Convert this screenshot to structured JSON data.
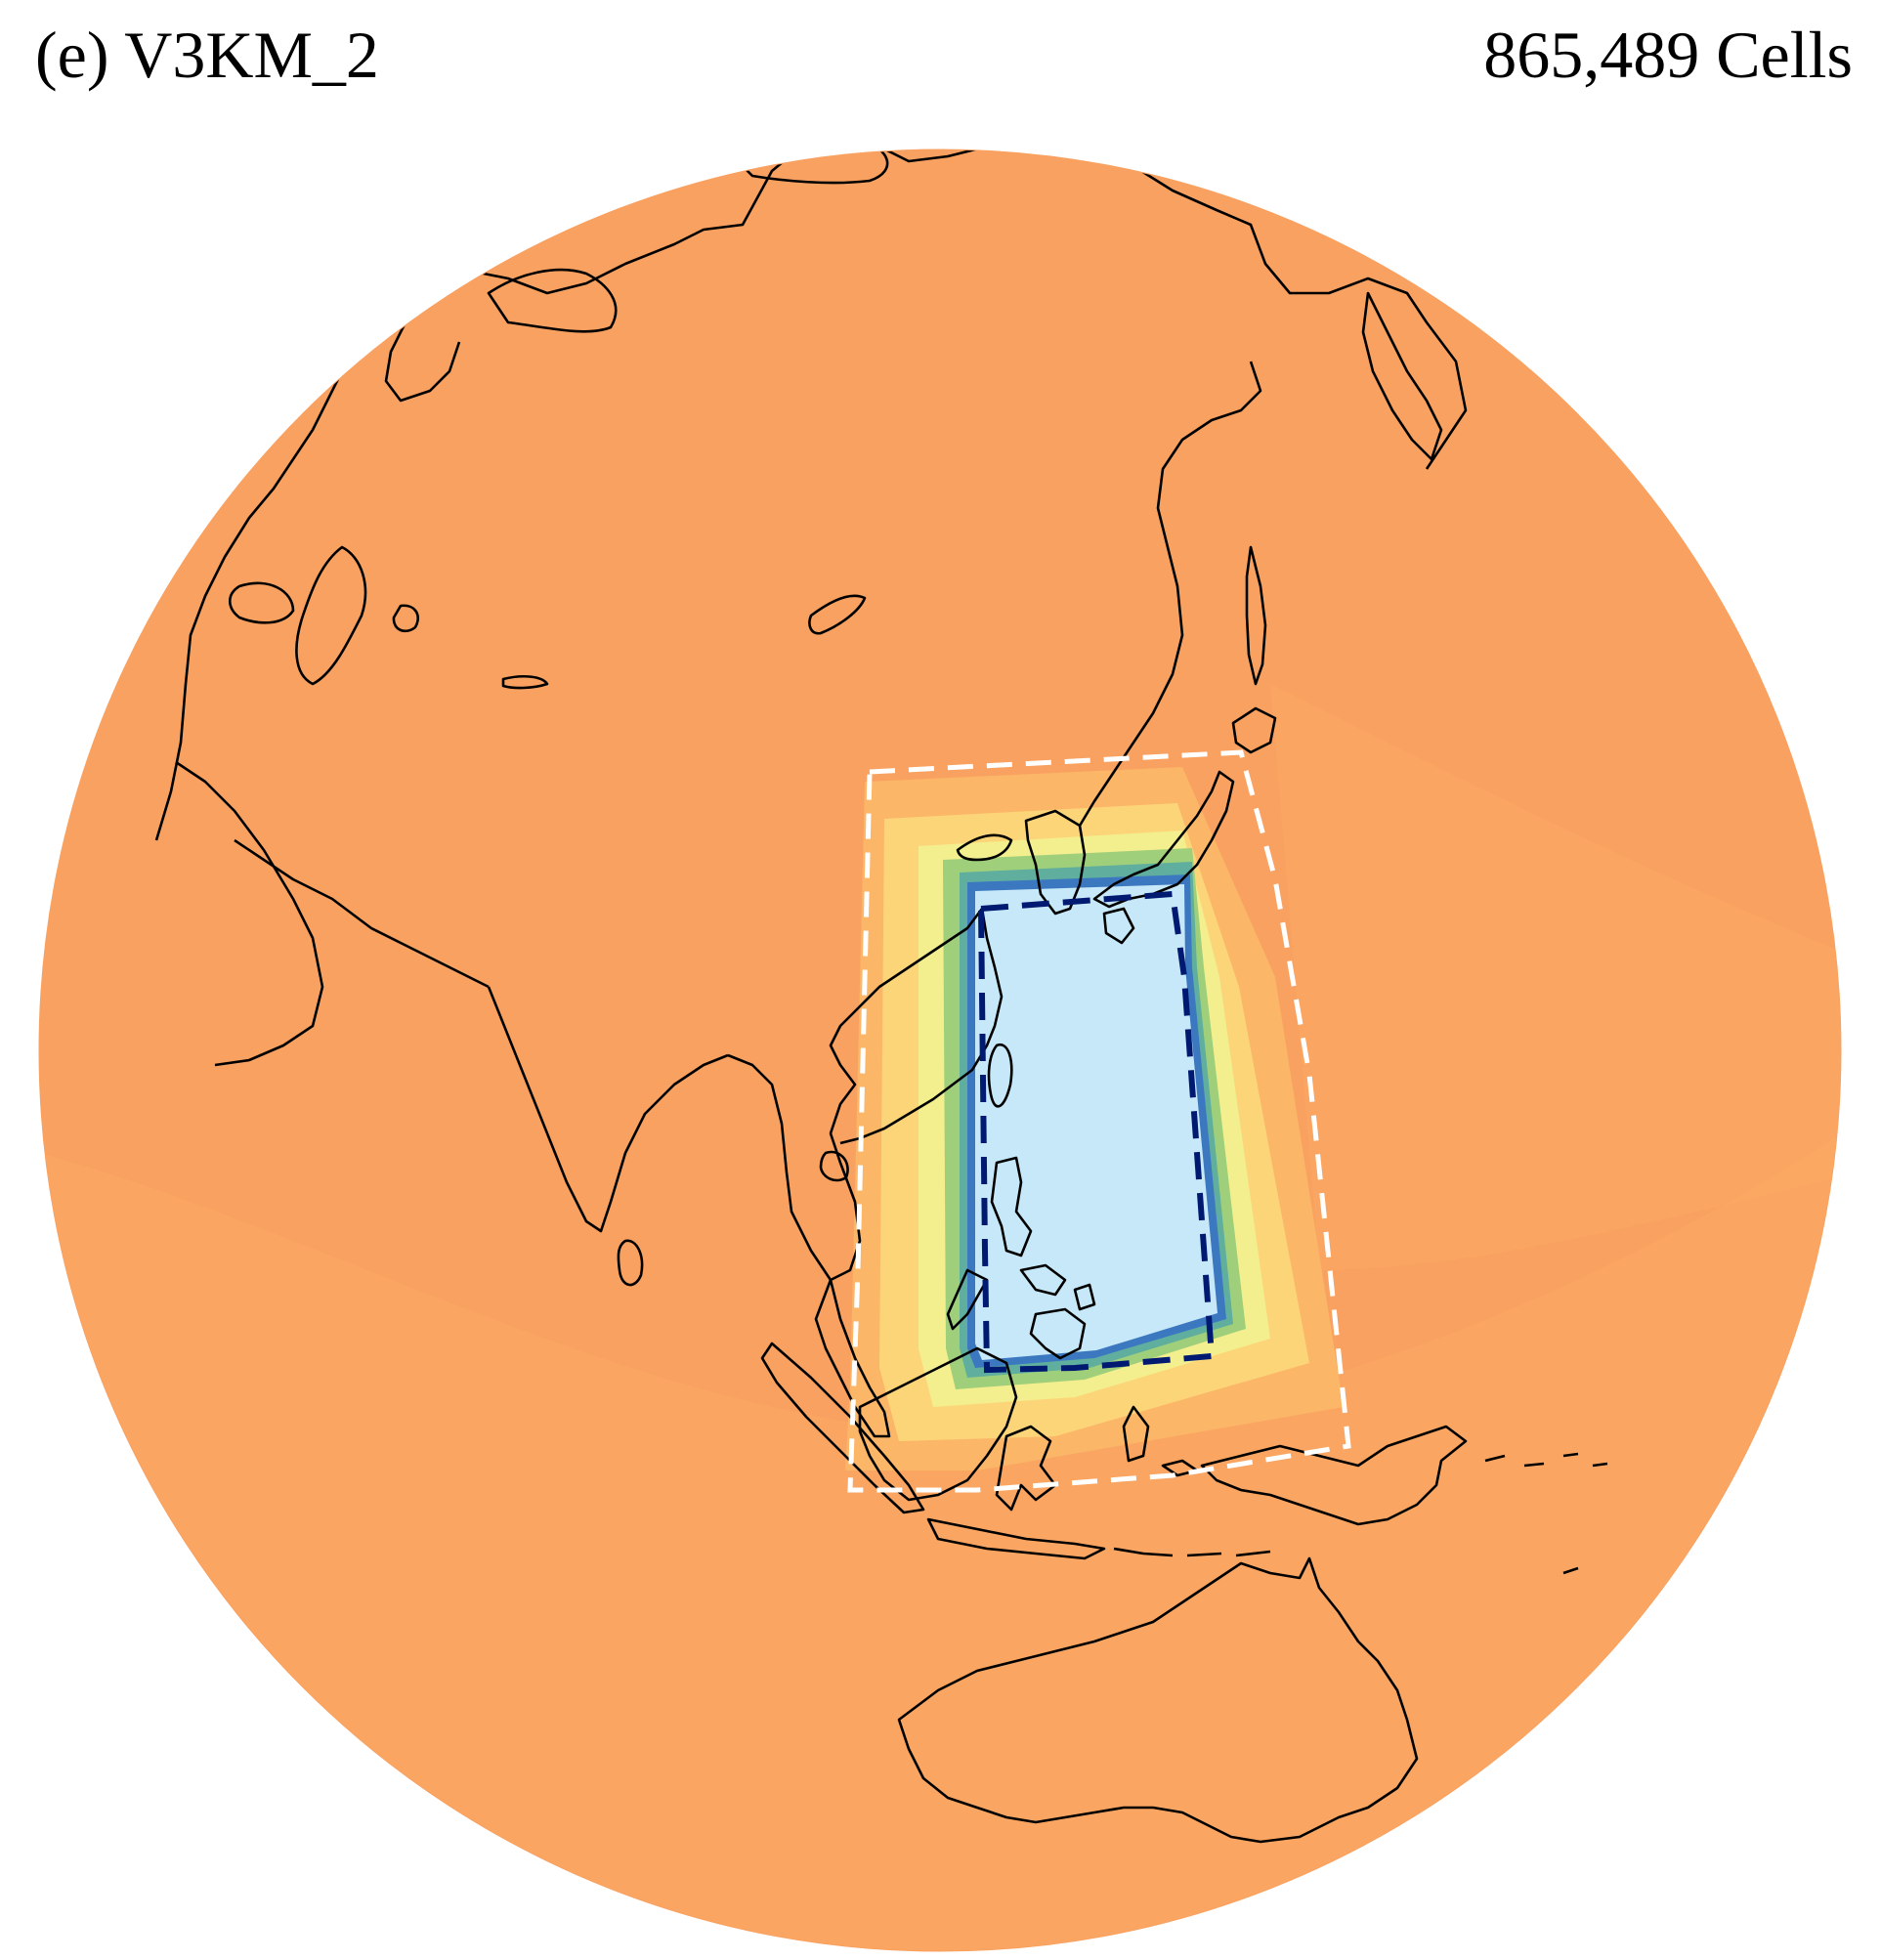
{
  "figure": {
    "panel_title": "(e) V3KM_2",
    "cell_count": "865,489 Cells"
  },
  "map": {
    "projection": "orthographic globe",
    "region_shown": "East Asia, Southeast Asia, Australia",
    "colors": {
      "coarse_mesh": "#f9a160",
      "outer_transition": "#fbb668",
      "transition_light": "#fdd579",
      "transition_yellow": "#f3ef8e",
      "transition_green": "#9fcf7a",
      "transition_teal": "#5fae9e",
      "transition_blue": "#3c78c0",
      "refined_core": "#c6e8f8",
      "inner_boundary": "#001a72",
      "outer_boundary": "#ffffff",
      "coastline": "#000000"
    },
    "boundaries": [
      {
        "name": "refined region boundary",
        "style": "dashed",
        "color": "dark navy"
      },
      {
        "name": "transition zone boundary",
        "style": "dashed",
        "color": "white"
      }
    ]
  }
}
